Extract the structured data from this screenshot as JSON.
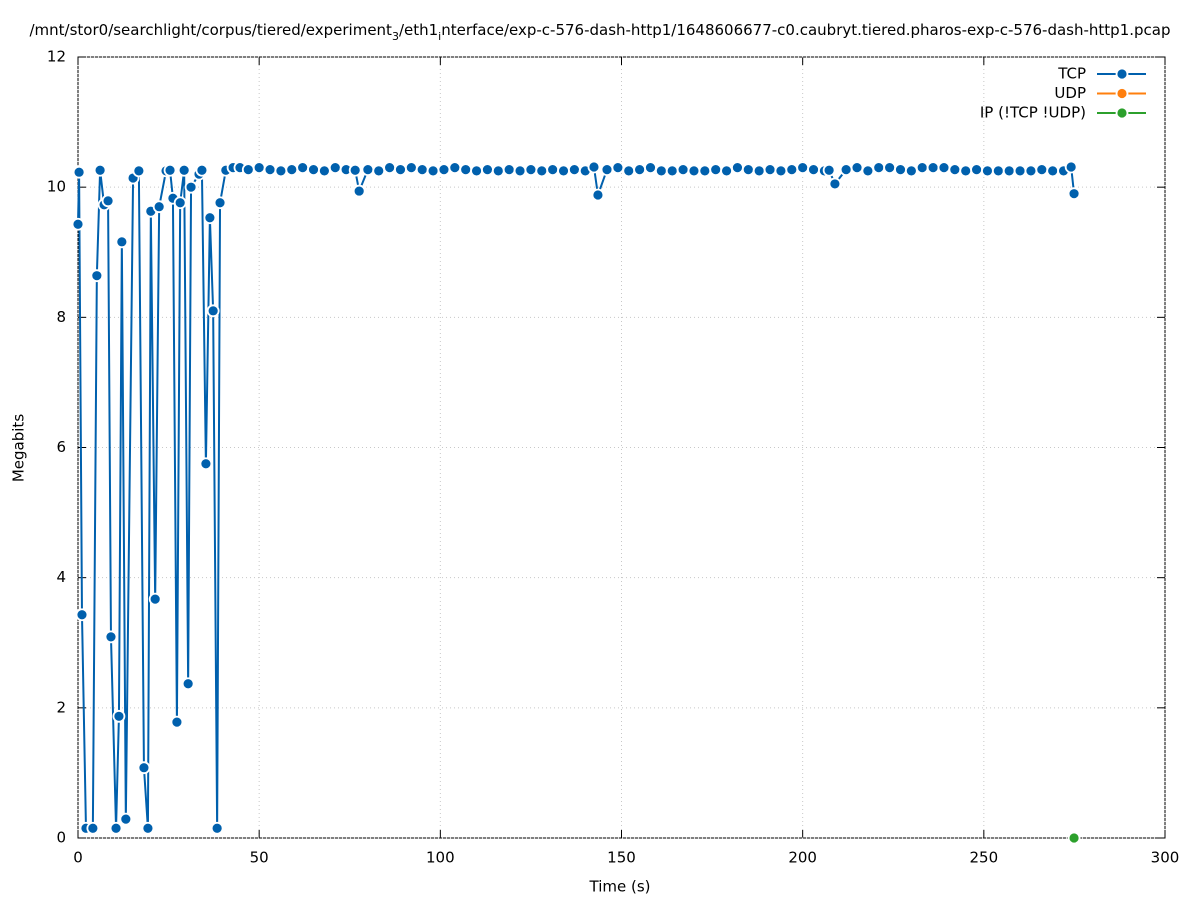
{
  "chart_data": {
    "type": "line",
    "title_parts": [
      {
        "text": "/mnt/stor0/searchlight/corpus/tiered/experiment",
        "sub": false
      },
      {
        "text": "3",
        "sub": true
      },
      {
        "text": "/eth1",
        "sub": false
      },
      {
        "text": "i",
        "sub": true
      },
      {
        "text": "nterface/exp-c-576-dash-http1/1648606677-c0.caubryt.tiered.pharos-exp-c-576-dash-http1.pcap",
        "sub": false
      }
    ],
    "x_label": "Time (s)",
    "y_label": "Megabits",
    "xlim": [
      0,
      300
    ],
    "xticks": [
      0,
      50,
      100,
      150,
      200,
      250,
      300
    ],
    "ylim": [
      0,
      12
    ],
    "yticks": [
      0,
      2,
      4,
      6,
      8,
      10,
      12
    ],
    "grid": true,
    "legend": "top-right",
    "series": [
      {
        "name": "TCP",
        "color": "#0060ad",
        "x": [
          0,
          0.3,
          1.1,
          2.2,
          4.1,
          5.2,
          6.1,
          7.2,
          8.3,
          9.1,
          10.5,
          11.3,
          12.1,
          13.2,
          15.2,
          16.8,
          18.2,
          19.3,
          20.1,
          21.3,
          22.4,
          24.3,
          25.4,
          26.2,
          27.3,
          28.2,
          29.3,
          30.4,
          31.2,
          33.4,
          34.2,
          35.3,
          36.4,
          37.3,
          38.4,
          39.2,
          40.8,
          42.8,
          44.7,
          47,
          50,
          53,
          56,
          59,
          62,
          65,
          68,
          71,
          74,
          76.5,
          77.6,
          80,
          83,
          86,
          89,
          92,
          95,
          98,
          101,
          104,
          107,
          110,
          113,
          116,
          119,
          122,
          125,
          128,
          131,
          134,
          137,
          140,
          142.4,
          143.5,
          146,
          149,
          152,
          155,
          158,
          161,
          164,
          167,
          170,
          173,
          176,
          179,
          182,
          185,
          188,
          191,
          194,
          197,
          200,
          203,
          206,
          207.3,
          208.9,
          212,
          215,
          218,
          221,
          224,
          227,
          230,
          233,
          236,
          239,
          242,
          245,
          248,
          251,
          254,
          257,
          260,
          263,
          266,
          269,
          272,
          274.1,
          274.9
        ],
        "values": [
          9.43,
          10.23,
          3.43,
          0.15,
          0.15,
          8.64,
          10.26,
          9.73,
          9.79,
          3.09,
          0.15,
          1.87,
          9.16,
          0.29,
          10.14,
          10.25,
          1.08,
          0.15,
          9.63,
          3.67,
          9.7,
          10.25,
          10.26,
          9.83,
          1.78,
          9.76,
          10.26,
          2.37,
          10.0,
          10.2,
          10.26,
          5.75,
          9.53,
          8.1,
          0.15,
          9.76,
          10.26,
          10.3,
          10.3,
          10.27,
          10.3,
          10.27,
          10.25,
          10.27,
          10.3,
          10.27,
          10.25,
          10.3,
          10.27,
          10.26,
          9.94,
          10.27,
          10.25,
          10.3,
          10.27,
          10.3,
          10.27,
          10.25,
          10.27,
          10.3,
          10.27,
          10.25,
          10.27,
          10.25,
          10.27,
          10.25,
          10.27,
          10.25,
          10.27,
          10.25,
          10.27,
          10.25,
          10.31,
          9.88,
          10.27,
          10.3,
          10.25,
          10.27,
          10.3,
          10.25,
          10.25,
          10.27,
          10.25,
          10.25,
          10.27,
          10.25,
          10.3,
          10.27,
          10.25,
          10.27,
          10.25,
          10.27,
          10.3,
          10.27,
          10.25,
          10.26,
          10.05,
          10.27,
          10.3,
          10.25,
          10.3,
          10.3,
          10.27,
          10.25,
          10.3,
          10.3,
          10.3,
          10.27,
          10.25,
          10.27,
          10.25,
          10.25,
          10.25,
          10.25,
          10.25,
          10.27,
          10.25,
          10.25,
          10.31,
          9.9
        ]
      },
      {
        "name": "UDP",
        "color": "#ff7f0e",
        "x": [],
        "values": []
      },
      {
        "name": "IP (!TCP  !UDP)",
        "color": "#2ca02c",
        "x": [
          274.9
        ],
        "values": [
          0
        ]
      }
    ]
  }
}
